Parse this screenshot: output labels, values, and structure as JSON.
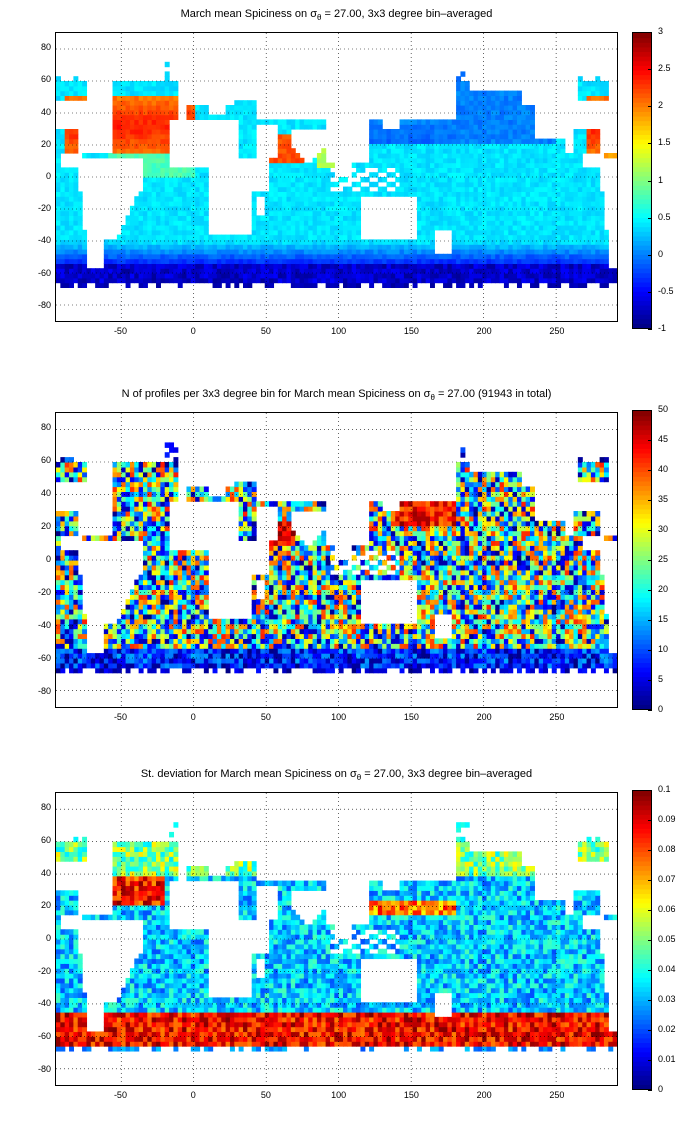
{
  "chart_data": [
    {
      "type": "heatmap",
      "title": "March mean Spiciness on σθ = 27.00, 3x3 degree bin–averaged",
      "title_parts": {
        "pre": "March mean Spiciness on σ",
        "sub": "θ",
        "post": " = 27.00, 3x3 degree bin–averaged"
      },
      "xlim": [
        -95,
        292
      ],
      "ylim": [
        -90,
        90
      ],
      "xticks": [
        "-50",
        "0",
        "50",
        "100",
        "150",
        "200",
        "250"
      ],
      "xtick_values": [
        -50,
        0,
        50,
        100,
        150,
        200,
        250
      ],
      "yticks": [
        "80",
        "60",
        "40",
        "20",
        "0",
        "-20",
        "-40",
        "-60",
        "-80"
      ],
      "ytick_values": [
        80,
        60,
        40,
        20,
        0,
        -20,
        -40,
        -60,
        -80
      ],
      "colorbar": {
        "min": -1,
        "max": 3,
        "ticks": [
          "3",
          "2.5",
          "2",
          "1.5",
          "1",
          "0.5",
          "0",
          "-0.5",
          "-1"
        ],
        "tick_values": [
          3,
          2.5,
          2,
          1.5,
          1,
          0.5,
          0,
          -0.5,
          -1
        ],
        "colormap": "jet"
      },
      "grid": "dotted",
      "colormap": "jet"
    },
    {
      "type": "heatmap",
      "title": "N of profiles per 3x3 degree bin for March mean Spiciness on σθ = 27.00 (91943 in total)",
      "title_parts": {
        "pre": "N of profiles per 3x3 degree bin for March mean Spiciness on σ",
        "sub": "θ",
        "post": " = 27.00 (91943 in total)"
      },
      "xlim": [
        -95,
        292
      ],
      "ylim": [
        -90,
        90
      ],
      "xticks": [
        "-50",
        "0",
        "50",
        "100",
        "150",
        "200",
        "250"
      ],
      "xtick_values": [
        -50,
        0,
        50,
        100,
        150,
        200,
        250
      ],
      "yticks": [
        "80",
        "60",
        "40",
        "20",
        "0",
        "-20",
        "-40",
        "-60",
        "-80"
      ],
      "ytick_values": [
        80,
        60,
        40,
        20,
        0,
        -20,
        -40,
        -60,
        -80
      ],
      "colorbar": {
        "min": 0,
        "max": 50,
        "ticks": [
          "50",
          "45",
          "40",
          "35",
          "30",
          "25",
          "20",
          "15",
          "10",
          "5",
          "0"
        ],
        "tick_values": [
          50,
          45,
          40,
          35,
          30,
          25,
          20,
          15,
          10,
          5,
          0
        ],
        "colormap": "jet"
      },
      "grid": "dotted",
      "colormap": "jet"
    },
    {
      "type": "heatmap",
      "title": "St. deviation for March mean Spiciness on σθ = 27.00, 3x3 degree bin–averaged",
      "title_parts": {
        "pre": "St. deviation for March mean Spiciness on σ",
        "sub": "θ",
        "post": " = 27.00, 3x3 degree bin–averaged"
      },
      "xlim": [
        -95,
        292
      ],
      "ylim": [
        -90,
        90
      ],
      "xticks": [
        "-50",
        "0",
        "50",
        "100",
        "150",
        "200",
        "250"
      ],
      "xtick_values": [
        -50,
        0,
        50,
        100,
        150,
        200,
        250
      ],
      "yticks": [
        "80",
        "60",
        "40",
        "20",
        "0",
        "-20",
        "-40",
        "-60",
        "-80"
      ],
      "ytick_values": [
        80,
        60,
        40,
        20,
        0,
        -20,
        -40,
        -60,
        -80
      ],
      "colorbar": {
        "min": 0,
        "max": 0.1,
        "ticks": [
          "0.1",
          "0.09",
          "0.08",
          "0.07",
          "0.06",
          "0.05",
          "0.04",
          "0.03",
          "0.02",
          "0.01",
          "0"
        ],
        "tick_values": [
          0.1,
          0.09,
          0.08,
          0.07,
          0.06,
          0.05,
          0.04,
          0.03,
          0.02,
          0.01,
          0
        ],
        "colormap": "jet"
      },
      "grid": "dotted",
      "colormap": "jet"
    }
  ]
}
